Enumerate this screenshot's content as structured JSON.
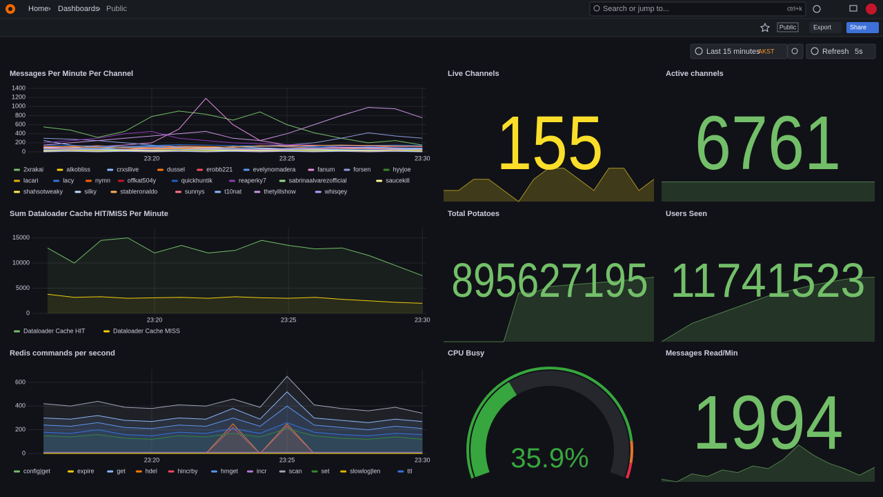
{
  "header": {
    "breadcrumbs": [
      "Home",
      "Dashboards",
      "Public"
    ],
    "search": "Search or jump to...",
    "shortcut": "ctrl+k"
  },
  "toolbar": {
    "badge": "Public",
    "export": "Export",
    "share": "Share",
    "time_range": "Last 15 minutes",
    "timezone": "AKST",
    "refresh": "Refresh",
    "interval": "5s"
  },
  "chart_data": [
    {
      "type": "timeseries",
      "title": "Messages Per Minute Per Channel",
      "categories": [
        null,
        null,
        null,
        null,
        "23:20",
        null,
        null,
        null,
        null,
        "23:25",
        null,
        null,
        null,
        null,
        "23:30"
      ],
      "ylim": [
        0,
        1400
      ],
      "yticks": [
        0,
        200,
        400,
        600,
        800,
        1000,
        1200,
        1400
      ],
      "grid": true,
      "fill_opacity": 0,
      "series": [
        {
          "name": "2xrakai",
          "color": "#73bf69",
          "values": [
            550,
            480,
            320,
            450,
            780,
            900,
            830,
            700,
            880,
            600,
            420,
            300,
            200,
            250,
            150
          ]
        },
        {
          "name": "alkobliss",
          "color": "#f2cc0c",
          "values": [
            60,
            50,
            40,
            60,
            80,
            70,
            50,
            40,
            60,
            50,
            40,
            50,
            60,
            40,
            50
          ]
        },
        {
          "name": "crxsllive",
          "color": "#8ab8ff",
          "values": [
            250,
            150,
            100,
            120,
            130,
            100,
            80,
            120,
            90,
            70,
            80,
            100,
            90,
            80,
            70
          ]
        },
        {
          "name": "dussel",
          "color": "#ff780a",
          "values": [
            100,
            120,
            140,
            110,
            90,
            130,
            120,
            100,
            140,
            110,
            90,
            80,
            100,
            120,
            110
          ]
        },
        {
          "name": "erobb221",
          "color": "#f2495c",
          "values": [
            40,
            30,
            50,
            40,
            30,
            40,
            60,
            50,
            30,
            40,
            50,
            40,
            30,
            40,
            30
          ]
        },
        {
          "name": "evelynomadera",
          "color": "#5794f2",
          "values": [
            80,
            90,
            70,
            100,
            110,
            90,
            80,
            70,
            60,
            80,
            90,
            100,
            110,
            90,
            80
          ]
        },
        {
          "name": "fanum",
          "color": "#e28ee0",
          "values": [
            100,
            90,
            120,
            150,
            200,
            500,
            1180,
            600,
            250,
            150,
            120,
            100,
            90,
            80,
            70
          ]
        },
        {
          "name": "forsen",
          "color": "#8e9cdc",
          "values": [
            300,
            280,
            250,
            200,
            150,
            120,
            100,
            110,
            130,
            150,
            200,
            300,
            420,
            350,
            300
          ]
        },
        {
          "name": "hyyjoe",
          "color": "#37872d",
          "values": [
            20,
            30,
            20,
            40,
            30,
            20,
            30,
            40,
            20,
            30,
            20,
            30,
            40,
            20,
            30
          ]
        },
        {
          "name": "lacari",
          "color": "#e0b400",
          "values": [
            50,
            60,
            40,
            50,
            60,
            70,
            60,
            50,
            40,
            50,
            60,
            70,
            50,
            40,
            60
          ]
        },
        {
          "name": "lacy",
          "color": "#3274d9",
          "values": [
            150,
            140,
            130,
            120,
            140,
            160,
            150,
            140,
            130,
            120,
            110,
            130,
            140,
            150,
            140
          ]
        },
        {
          "name": "nymn",
          "color": "#fa6400",
          "values": [
            30,
            40,
            30,
            20,
            30,
            40,
            50,
            40,
            30,
            20,
            30,
            40,
            30,
            20,
            30
          ]
        },
        {
          "name": "offkat504y",
          "color": "#c4162a",
          "values": [
            10,
            20,
            10,
            20,
            10,
            20,
            10,
            20,
            10,
            20,
            10,
            20,
            10,
            20,
            10
          ]
        },
        {
          "name": "quickhuntik",
          "color": "#1f60c4",
          "values": [
            60,
            50,
            70,
            60,
            50,
            40,
            60,
            70,
            50,
            60,
            70,
            60,
            50,
            60,
            70
          ]
        },
        {
          "name": "reaperky7",
          "color": "#8f3bb8",
          "values": [
            200,
            250,
            300,
            400,
            450,
            300,
            250,
            200,
            180,
            160,
            150,
            140,
            130,
            120,
            110
          ]
        },
        {
          "name": "sabrinaalvarezofficial",
          "color": "#96d98d",
          "values": [
            20,
            20,
            30,
            30,
            20,
            20,
            30,
            30,
            20,
            20,
            30,
            30,
            20,
            20,
            30
          ]
        },
        {
          "name": "saucekill",
          "color": "#fff899",
          "values": [
            10,
            10,
            10,
            20,
            20,
            10,
            10,
            20,
            20,
            10,
            10,
            20,
            20,
            10,
            10
          ]
        },
        {
          "name": "shahsotweaky",
          "color": "#ffee52",
          "values": [
            30,
            40,
            50,
            40,
            30,
            40,
            50,
            40,
            30,
            40,
            50,
            40,
            30,
            40,
            50
          ]
        },
        {
          "name": "silky",
          "color": "#c0d8ff",
          "values": [
            90,
            80,
            70,
            60,
            70,
            80,
            90,
            80,
            70,
            60,
            70,
            80,
            90,
            80,
            70
          ]
        },
        {
          "name": "stableronaldo",
          "color": "#ffb357",
          "values": [
            120,
            110,
            100,
            90,
            80,
            90,
            100,
            110,
            120,
            130,
            140,
            150,
            140,
            130,
            120
          ]
        },
        {
          "name": "sunnys",
          "color": "#ff7383",
          "values": [
            70,
            60,
            50,
            60,
            70,
            80,
            70,
            60,
            50,
            60,
            70,
            80,
            70,
            60,
            50
          ]
        },
        {
          "name": "t10nat",
          "color": "#8ab8ff",
          "values": [
            40,
            50,
            60,
            50,
            40,
            50,
            60,
            50,
            40,
            50,
            60,
            50,
            40,
            50,
            60
          ]
        },
        {
          "name": "thetyillshow",
          "color": "#ca95e5",
          "values": [
            150,
            200,
            250,
            300,
            350,
            400,
            450,
            300,
            250,
            400,
            600,
            800,
            980,
            950,
            750
          ]
        },
        {
          "name": "whisqey",
          "color": "#a6a6ff",
          "values": [
            0,
            10,
            0,
            10,
            0,
            10,
            0,
            10,
            0,
            10,
            0,
            10,
            0,
            10,
            0
          ]
        }
      ]
    },
    {
      "type": "stat",
      "title": "Live Channels",
      "values": [
        155
      ],
      "color": "#fade2a",
      "sparkline": [
        153,
        153,
        154,
        154,
        153,
        152,
        154,
        155,
        155,
        154,
        153,
        155,
        155,
        153,
        154
      ]
    },
    {
      "type": "stat",
      "title": "Active channels",
      "values": [
        6761
      ],
      "color": "#73bf69",
      "sparkline": [
        6761,
        6761,
        6761,
        6761,
        6761,
        6761,
        6761,
        6761,
        6761,
        6761,
        6761,
        6761,
        6761,
        6761,
        6761
      ]
    },
    {
      "type": "timeseries",
      "title": "Sum Dataloader Cache HIT/MISS Per Minute",
      "categories": [
        null,
        null,
        null,
        null,
        "23:20",
        null,
        null,
        null,
        null,
        "23:25",
        null,
        null,
        null,
        null,
        "23:30"
      ],
      "ylim": [
        0,
        17000
      ],
      "yticks": [
        0,
        5000,
        10000,
        15000
      ],
      "grid": true,
      "fill_opacity": 0.08,
      "series": [
        {
          "name": "Dataloader Cache HIT",
          "color": "#73bf69",
          "values": [
            13000,
            10000,
            14500,
            15000,
            12000,
            13500,
            12000,
            12500,
            14500,
            13500,
            12800,
            13000,
            11500,
            9500,
            7500
          ]
        },
        {
          "name": "Dataloader Cache MISS",
          "color": "#f2cc0c",
          "values": [
            3800,
            3200,
            3300,
            3000,
            3100,
            3200,
            3000,
            3300,
            3100,
            3000,
            3200,
            2800,
            2500,
            2200,
            2000
          ]
        }
      ]
    },
    {
      "type": "stat",
      "title": "Total Potatoes",
      "values": [
        895627195
      ],
      "color": "#73bf69",
      "sparkline": [
        895100000,
        895100000,
        895100000,
        895100000,
        895100000,
        895500000,
        895500000,
        895550000,
        895560000,
        895570000,
        895580000,
        895590000,
        895600000,
        895615000,
        895627195
      ]
    },
    {
      "type": "stat",
      "title": "Users Seen",
      "values": [
        11741523
      ],
      "color": "#73bf69",
      "sparkline": [
        11738000,
        11738500,
        11739000,
        11739300,
        11739600,
        11739900,
        11740200,
        11740500,
        11740700,
        11740900,
        11741100,
        11741250,
        11741400,
        11741500,
        11741523
      ]
    },
    {
      "type": "timeseries",
      "title": "Redis commands per second",
      "categories": [
        null,
        null,
        null,
        null,
        "23:20",
        null,
        null,
        null,
        null,
        "23:25",
        null,
        null,
        null,
        null,
        "23:30"
      ],
      "ylim": [
        0,
        710
      ],
      "yticks": [
        0,
        200,
        400,
        600
      ],
      "grid": true,
      "fill_opacity": 0.1,
      "series": [
        {
          "name": "config|get",
          "color": "#73bf69",
          "values": [
            2,
            2,
            2,
            2,
            2,
            2,
            2,
            2,
            2,
            2,
            2,
            2,
            2,
            2,
            2
          ]
        },
        {
          "name": "expire",
          "color": "#f2cc0c",
          "values": [
            3,
            3,
            3,
            3,
            3,
            3,
            3,
            3,
            3,
            3,
            3,
            3,
            3,
            3,
            3
          ]
        },
        {
          "name": "get",
          "color": "#8ab8ff",
          "values": [
            300,
            290,
            320,
            280,
            270,
            300,
            290,
            380,
            290,
            520,
            300,
            280,
            260,
            290,
            270
          ]
        },
        {
          "name": "hdel",
          "color": "#ff780a",
          "values": [
            0,
            0,
            0,
            0,
            0,
            0,
            0,
            250,
            0,
            250,
            0,
            0,
            0,
            0,
            0
          ]
        },
        {
          "name": "hincrby",
          "color": "#f2495c",
          "values": [
            0,
            0,
            0,
            0,
            0,
            0,
            0,
            220,
            0,
            230,
            0,
            0,
            0,
            0,
            0
          ]
        },
        {
          "name": "hmget",
          "color": "#5794f2",
          "values": [
            240,
            230,
            260,
            220,
            210,
            240,
            230,
            300,
            230,
            400,
            240,
            220,
            200,
            230,
            210
          ]
        },
        {
          "name": "incr",
          "color": "#b877d9",
          "values": [
            10,
            10,
            10,
            10,
            10,
            10,
            10,
            10,
            10,
            10,
            10,
            10,
            10,
            10,
            10
          ]
        },
        {
          "name": "scan",
          "color": "#a0a3b8",
          "values": [
            420,
            400,
            440,
            390,
            380,
            410,
            400,
            460,
            390,
            650,
            410,
            380,
            360,
            390,
            340
          ]
        },
        {
          "name": "set",
          "color": "#37872d",
          "values": [
            150,
            140,
            160,
            130,
            120,
            150,
            140,
            170,
            140,
            210,
            150,
            130,
            120,
            140,
            120
          ]
        },
        {
          "name": "slowlog|len",
          "color": "#e0b400",
          "values": [
            0,
            0,
            0,
            0,
            0,
            0,
            0,
            0,
            0,
            0,
            0,
            0,
            0,
            0,
            0
          ]
        },
        {
          "name": "ttl",
          "color": "#3274d9",
          "values": [
            180,
            170,
            200,
            160,
            150,
            180,
            170,
            210,
            170,
            260,
            180,
            160,
            150,
            170,
            160
          ]
        }
      ]
    },
    {
      "type": "gauge",
      "title": "CPU Busy",
      "values": [
        35.9
      ],
      "value_labels": [
        "35.9%"
      ],
      "ylim": [
        0,
        100
      ],
      "color": "#37a63e",
      "thresholds": [
        {
          "value": 0,
          "color": "#37a63e"
        },
        {
          "value": 88,
          "color": "#e0752d"
        },
        {
          "value": 95,
          "color": "#e02f44"
        }
      ]
    },
    {
      "type": "stat",
      "title": "Messages Read/Min",
      "values": [
        1994
      ],
      "color": "#73bf69",
      "sparkline": [
        1300,
        1200,
        1500,
        1400,
        1650,
        1550,
        1800,
        1700,
        2050,
        2600,
        2200,
        1900,
        1700,
        1450,
        1750
      ]
    }
  ]
}
